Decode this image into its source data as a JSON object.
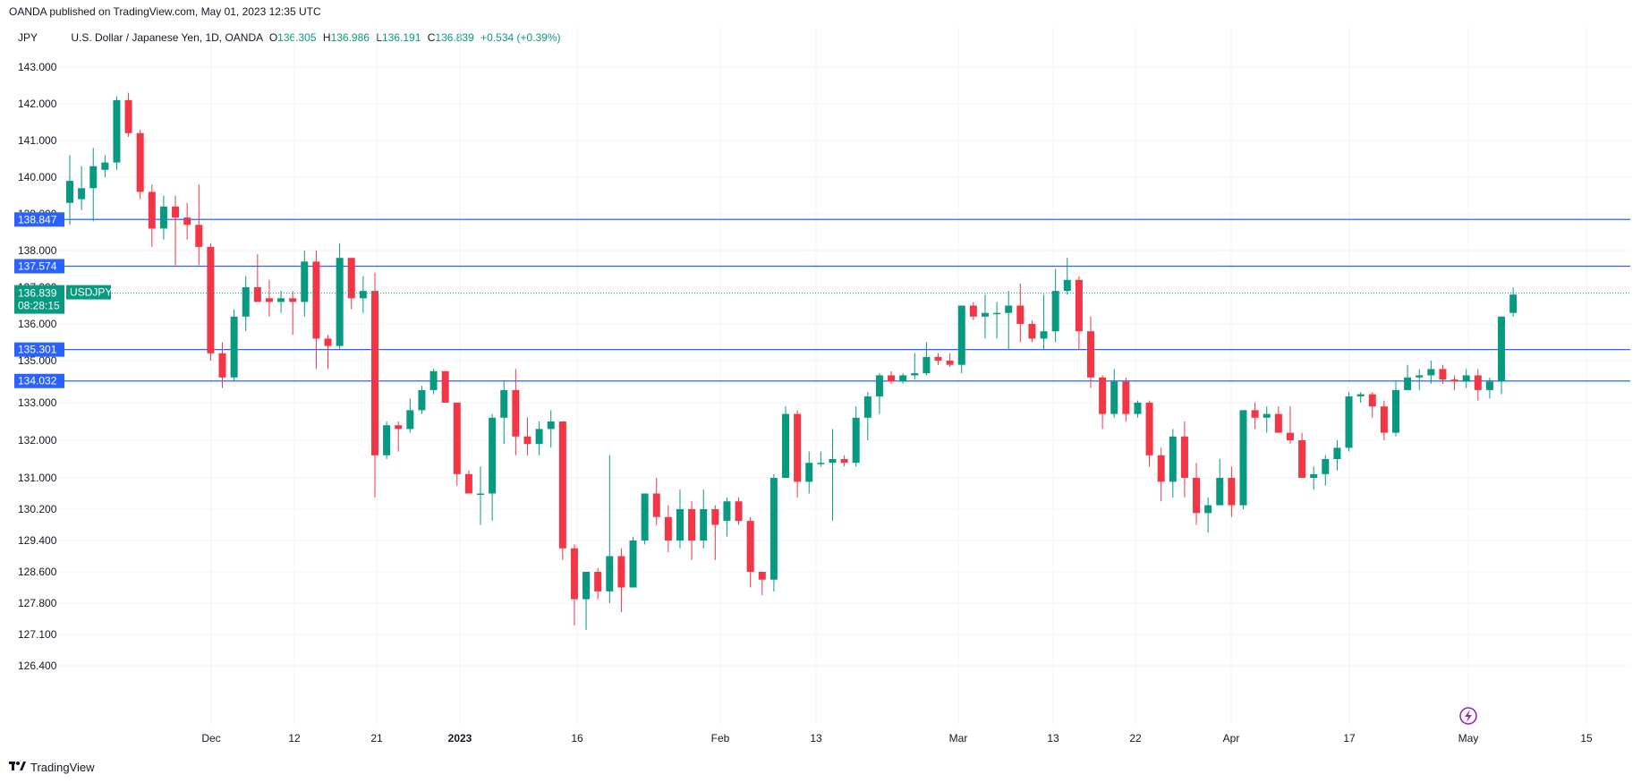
{
  "publisher_line": "OANDA published on TradingView.com, May 01, 2023 12:35 UTC",
  "header": {
    "symbol": "JPY",
    "title": "U.S. Dollar / Japanese Yen, 1D, OANDA",
    "open_label": "O",
    "open": "136.305",
    "high_label": "H",
    "high": "136.986",
    "low_label": "L",
    "low": "136.191",
    "close_label": "C",
    "close": "136.839",
    "change": "+0.534 (+0.39%)"
  },
  "footer": {
    "brand": "TradingView",
    "logo_icon": "tradingview-logo-icon"
  },
  "colors": {
    "up": "#089981",
    "down": "#f23645",
    "level_line": "#2962ff",
    "price_tag": "#089981",
    "level_tag": "#2962ff",
    "grid": "#f0f3fa"
  },
  "chart_data": {
    "type": "candlestick",
    "y_ticks": [
      "143.000",
      "142.000",
      "141.000",
      "140.000",
      "139.000",
      "138.000",
      "137.000",
      "136.000",
      "135.000",
      "133.000",
      "132.000",
      "131.000",
      "130.200",
      "129.400",
      "128.600",
      "127.800",
      "127.100",
      "126.400"
    ],
    "x_ticks": [
      "Dec",
      "12",
      "21",
      "2023",
      "16",
      "Feb",
      "13",
      "Mar",
      "13",
      "22",
      "Apr",
      "17",
      "May",
      "15"
    ],
    "current_price": {
      "value": "136.839",
      "countdown": "08:28:15",
      "symbol_tag": "USDJPY"
    },
    "horizontal_levels": [
      138.847,
      137.574,
      135.301,
      134.032
    ],
    "level_labels": [
      "138.847",
      "137.574",
      "135.301",
      "134.032"
    ],
    "candles": [
      [
        139.3,
        139.9,
        138.7,
        140.6
      ],
      [
        139.4,
        139.7,
        139.1,
        140.3
      ],
      [
        139.7,
        140.3,
        138.8,
        140.8
      ],
      [
        140.2,
        140.4,
        140.0,
        140.6
      ],
      [
        140.4,
        142.1,
        140.2,
        142.2
      ],
      [
        142.1,
        141.2,
        141.1,
        142.3
      ],
      [
        141.2,
        139.6,
        139.4,
        141.3
      ],
      [
        139.6,
        138.6,
        138.1,
        139.8
      ],
      [
        138.6,
        139.2,
        138.3,
        139.5
      ],
      [
        139.2,
        138.9,
        137.6,
        139.5
      ],
      [
        138.9,
        138.7,
        138.3,
        139.3
      ],
      [
        138.7,
        138.1,
        137.6,
        139.8
      ],
      [
        138.1,
        135.2,
        135.0,
        138.2
      ],
      [
        135.2,
        134.2,
        133.7,
        135.5
      ],
      [
        134.2,
        136.2,
        134.0,
        136.4
      ],
      [
        136.2,
        137.0,
        135.8,
        137.3
      ],
      [
        137.0,
        136.6,
        136.6,
        137.9
      ],
      [
        136.7,
        136.6,
        136.2,
        137.2
      ],
      [
        136.6,
        136.7,
        136.3,
        136.9
      ],
      [
        136.7,
        136.6,
        135.7,
        136.9
      ],
      [
        136.6,
        137.7,
        136.2,
        138.0
      ],
      [
        137.7,
        135.6,
        134.6,
        138.0
      ],
      [
        135.6,
        135.4,
        134.6,
        135.7
      ],
      [
        135.4,
        137.8,
        135.3,
        138.2
      ],
      [
        137.8,
        136.7,
        136.4,
        137.8
      ],
      [
        136.7,
        136.9,
        136.3,
        137.3
      ],
      [
        136.9,
        131.6,
        130.5,
        137.4
      ],
      [
        131.6,
        132.4,
        131.5,
        132.5
      ],
      [
        132.4,
        132.3,
        131.7,
        132.5
      ],
      [
        132.3,
        132.8,
        132.2,
        133.2
      ],
      [
        132.8,
        133.6,
        132.7,
        133.8
      ],
      [
        133.6,
        134.5,
        133.4,
        134.6
      ],
      [
        134.5,
        133.0,
        133.0,
        134.5
      ],
      [
        133.0,
        131.1,
        130.8,
        133.0
      ],
      [
        131.1,
        130.6,
        130.6,
        131.2
      ],
      [
        130.6,
        130.6,
        129.8,
        131.3
      ],
      [
        130.6,
        132.6,
        129.9,
        132.7
      ],
      [
        132.6,
        133.6,
        131.9,
        134.0
      ],
      [
        133.6,
        132.1,
        131.6,
        134.6
      ],
      [
        132.1,
        131.9,
        131.6,
        132.6
      ],
      [
        131.9,
        132.3,
        131.6,
        132.5
      ],
      [
        132.3,
        132.5,
        131.8,
        132.8
      ],
      [
        132.5,
        129.2,
        128.9,
        132.5
      ],
      [
        129.2,
        127.9,
        127.3,
        129.3
      ],
      [
        127.9,
        128.6,
        127.2,
        128.6
      ],
      [
        128.6,
        128.1,
        127.9,
        128.7
      ],
      [
        128.1,
        129.0,
        127.8,
        131.6
      ],
      [
        129.0,
        128.2,
        127.6,
        129.2
      ],
      [
        128.2,
        129.4,
        128.2,
        129.5
      ],
      [
        129.4,
        130.6,
        129.3,
        130.6
      ],
      [
        130.6,
        130.0,
        129.8,
        131.0
      ],
      [
        130.0,
        129.4,
        129.1,
        130.3
      ],
      [
        129.4,
        130.2,
        129.2,
        130.7
      ],
      [
        130.2,
        129.4,
        128.9,
        130.4
      ],
      [
        129.4,
        130.2,
        129.2,
        130.7
      ],
      [
        130.2,
        129.8,
        128.9,
        130.3
      ],
      [
        129.9,
        130.4,
        129.5,
        130.5
      ],
      [
        130.4,
        129.9,
        129.8,
        130.5
      ],
      [
        129.9,
        128.6,
        128.2,
        130.0
      ],
      [
        128.6,
        128.4,
        128.0,
        128.6
      ],
      [
        128.4,
        131.0,
        128.1,
        131.1
      ],
      [
        131.0,
        132.7,
        131.0,
        132.9
      ],
      [
        132.7,
        130.9,
        130.5,
        132.8
      ],
      [
        130.9,
        131.4,
        130.6,
        131.7
      ],
      [
        131.4,
        131.4,
        131.3,
        131.7
      ],
      [
        131.4,
        131.5,
        129.9,
        132.3
      ],
      [
        131.5,
        131.4,
        131.3,
        131.6
      ],
      [
        131.4,
        132.6,
        131.3,
        132.9
      ],
      [
        132.6,
        133.3,
        132.0,
        133.5
      ],
      [
        133.3,
        134.3,
        132.7,
        134.4
      ],
      [
        134.3,
        134.0,
        133.9,
        134.5
      ],
      [
        134.0,
        134.3,
        133.9,
        134.4
      ],
      [
        134.3,
        134.4,
        134.1,
        135.2
      ],
      [
        134.4,
        135.1,
        134.3,
        135.5
      ],
      [
        135.1,
        135.0,
        134.8,
        135.2
      ],
      [
        135.0,
        134.8,
        134.7,
        135.2
      ],
      [
        134.8,
        136.5,
        134.4,
        136.5
      ],
      [
        136.5,
        136.2,
        136.1,
        136.6
      ],
      [
        136.2,
        136.3,
        135.6,
        136.8
      ],
      [
        136.3,
        136.3,
        135.6,
        136.6
      ],
      [
        136.3,
        136.5,
        135.3,
        136.9
      ],
      [
        136.5,
        136.0,
        135.5,
        137.1
      ],
      [
        136.0,
        135.6,
        135.5,
        136.1
      ],
      [
        135.6,
        135.8,
        135.3,
        136.8
      ],
      [
        135.8,
        136.9,
        135.5,
        137.5
      ],
      [
        136.9,
        137.2,
        136.8,
        137.8
      ],
      [
        137.2,
        135.8,
        135.3,
        137.3
      ],
      [
        135.8,
        134.2,
        133.7,
        136.2
      ],
      [
        134.2,
        132.7,
        132.3,
        134.3
      ],
      [
        132.7,
        134.0,
        132.6,
        134.6
      ],
      [
        134.0,
        132.7,
        132.5,
        134.2
      ],
      [
        132.7,
        133.0,
        132.6,
        133.1
      ],
      [
        133.0,
        131.6,
        131.3,
        133.1
      ],
      [
        131.6,
        130.9,
        130.4,
        131.8
      ],
      [
        130.9,
        132.1,
        130.5,
        132.3
      ],
      [
        132.1,
        131.0,
        130.5,
        132.5
      ],
      [
        131.0,
        130.1,
        129.8,
        131.4
      ],
      [
        130.1,
        130.3,
        129.6,
        130.5
      ],
      [
        130.3,
        131.0,
        130.4,
        131.5
      ],
      [
        131.0,
        130.3,
        130.0,
        131.3
      ],
      [
        130.3,
        132.8,
        130.2,
        132.8
      ],
      [
        132.8,
        132.6,
        132.3,
        133.0
      ],
      [
        132.6,
        132.7,
        132.2,
        132.9
      ],
      [
        132.7,
        132.2,
        132.2,
        132.9
      ],
      [
        132.2,
        132.0,
        131.9,
        132.9
      ],
      [
        132.0,
        131.0,
        131.0,
        132.2
      ],
      [
        131.0,
        131.1,
        130.7,
        131.3
      ],
      [
        131.1,
        131.5,
        130.8,
        131.6
      ],
      [
        131.5,
        131.8,
        131.2,
        132.0
      ],
      [
        131.8,
        133.3,
        131.7,
        133.5
      ],
      [
        133.3,
        133.4,
        133.0,
        133.5
      ],
      [
        133.4,
        132.9,
        132.6,
        133.5
      ],
      [
        132.9,
        132.2,
        132.0,
        133.1
      ],
      [
        132.2,
        133.6,
        132.1,
        134.0
      ],
      [
        133.6,
        134.2,
        133.6,
        134.8
      ],
      [
        134.2,
        134.3,
        133.6,
        134.6
      ],
      [
        134.3,
        134.6,
        133.9,
        135.0
      ],
      [
        134.6,
        134.1,
        133.9,
        134.8
      ],
      [
        134.1,
        134.0,
        133.6,
        134.3
      ],
      [
        134.0,
        134.3,
        133.7,
        134.6
      ],
      [
        134.3,
        133.6,
        133.1,
        134.6
      ],
      [
        133.6,
        134.0,
        133.2,
        134.2
      ],
      [
        134.0,
        136.2,
        133.4,
        136.2
      ],
      [
        136.3,
        136.8,
        136.2,
        136.99
      ]
    ]
  }
}
